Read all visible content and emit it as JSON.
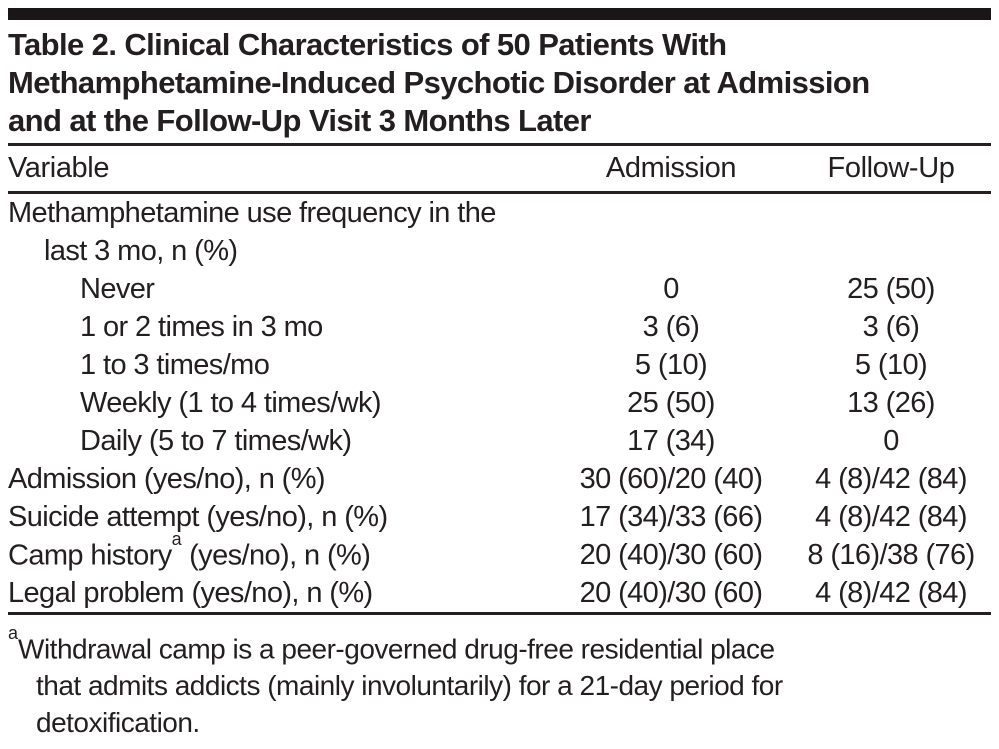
{
  "colors": {
    "text": "#231f20",
    "top_bar": "#1a1617",
    "background": "#ffffff"
  },
  "table": {
    "title_lines": [
      "Table 2. Clinical Characteristics of 50 Patients With",
      "Methamphetamine-Induced Psychotic Disorder at Admission",
      "and at the Follow-Up Visit 3 Months Later"
    ],
    "columns": {
      "variable": "Variable",
      "admission": "Admission",
      "follow_up": "Follow-Up"
    },
    "rows": [
      {
        "label": "Methamphetamine use frequency in the",
        "admission": "",
        "follow_up": ""
      },
      {
        "label": "last 3 mo, n (%)",
        "admission": "",
        "follow_up": ""
      },
      {
        "label": "Never",
        "admission": "0",
        "follow_up": "25 (50)"
      },
      {
        "label": "1 or 2 times in 3 mo",
        "admission": "3 (6)",
        "follow_up": "3 (6)"
      },
      {
        "label": "1 to 3 times/mo",
        "admission": "5 (10)",
        "follow_up": "5 (10)"
      },
      {
        "label": "Weekly (1 to 4 times/wk)",
        "admission": "25 (50)",
        "follow_up": "13 (26)"
      },
      {
        "label": "Daily (5 to 7 times/wk)",
        "admission": "17 (34)",
        "follow_up": "0"
      },
      {
        "label": "Admission (yes/no), n (%)",
        "admission": "30 (60)/20 (40)",
        "follow_up": "4 (8)/42 (84)"
      },
      {
        "label": "Suicide attempt (yes/no), n (%)",
        "admission": "17 (34)/33 (66)",
        "follow_up": "4 (8)/42 (84)"
      },
      {
        "label_pre": "Camp history",
        "label_sup": "a",
        "label_post": " (yes/no), n (%)",
        "admission": "20 (40)/30 (60)",
        "follow_up": "8 (16)/38 (76)"
      },
      {
        "label": "Legal problem (yes/no), n (%)",
        "admission": "20 (40)/30 (60)",
        "follow_up": "4 (8)/42 (84)"
      }
    ],
    "footnote": {
      "marker": "a",
      "lines": [
        "Withdrawal camp is a peer-governed drug-free residential place",
        "that admits addicts (mainly involuntarily) for a 21-day period for",
        "detoxification."
      ]
    }
  }
}
